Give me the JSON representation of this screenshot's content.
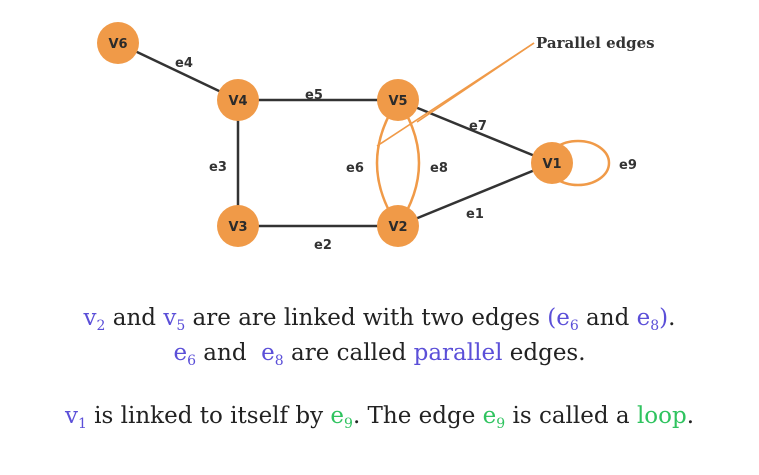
{
  "colors": {
    "node_fill": "#f09a48",
    "edge_dark": "#333333",
    "edge_highlight": "#f09a48",
    "accent_purple": "#5b4fd8",
    "accent_green": "#2fc35f",
    "text_dark": "#222222"
  },
  "graph": {
    "nodes": [
      {
        "id": "V6",
        "label": "V6"
      },
      {
        "id": "V4",
        "label": "V4"
      },
      {
        "id": "V5",
        "label": "V5"
      },
      {
        "id": "V3",
        "label": "V3"
      },
      {
        "id": "V2",
        "label": "V2"
      },
      {
        "id": "V1",
        "label": "V1"
      }
    ],
    "edges": [
      {
        "id": "e1",
        "label": "e1",
        "from": "V2",
        "to": "V1"
      },
      {
        "id": "e2",
        "label": "e2",
        "from": "V3",
        "to": "V2"
      },
      {
        "id": "e3",
        "label": "e3",
        "from": "V4",
        "to": "V3"
      },
      {
        "id": "e4",
        "label": "e4",
        "from": "V6",
        "to": "V4"
      },
      {
        "id": "e5",
        "label": "e5",
        "from": "V4",
        "to": "V5"
      },
      {
        "id": "e6",
        "label": "e6",
        "from": "V5",
        "to": "V2"
      },
      {
        "id": "e7",
        "label": "e7",
        "from": "V5",
        "to": "V1"
      },
      {
        "id": "e8",
        "label": "e8",
        "from": "V5",
        "to": "V2"
      },
      {
        "id": "e9",
        "label": "e9",
        "from": "V1",
        "to": "V1"
      }
    ],
    "callout": "Parallel edges"
  },
  "text": {
    "line1": [
      {
        "t": "v",
        "c": "purple"
      },
      {
        "t": "2",
        "c": "purple",
        "sub": true
      },
      {
        "t": " and ",
        "c": "dark"
      },
      {
        "t": "v",
        "c": "purple"
      },
      {
        "t": "5",
        "c": "purple",
        "sub": true
      },
      {
        "t": " are are linked with two edges ",
        "c": "dark"
      },
      {
        "t": "(e",
        "c": "purple"
      },
      {
        "t": "6",
        "c": "purple",
        "sub": true
      },
      {
        "t": " and ",
        "c": "dark"
      },
      {
        "t": "e",
        "c": "purple"
      },
      {
        "t": "8",
        "c": "purple",
        "sub": true
      },
      {
        "t": ")",
        "c": "purple"
      },
      {
        "t": ".",
        "c": "dark"
      }
    ],
    "line2": [
      {
        "t": "e",
        "c": "purple"
      },
      {
        "t": "6",
        "c": "purple",
        "sub": true
      },
      {
        "t": " and  ",
        "c": "dark"
      },
      {
        "t": "e",
        "c": "purple"
      },
      {
        "t": "8",
        "c": "purple",
        "sub": true
      },
      {
        "t": " are called ",
        "c": "dark"
      },
      {
        "t": "parallel",
        "c": "purple"
      },
      {
        "t": " edges.",
        "c": "dark"
      }
    ],
    "line3": [
      {
        "t": "v",
        "c": "purple"
      },
      {
        "t": "1",
        "c": "purple",
        "sub": true
      },
      {
        "t": " is linked to itself by ",
        "c": "dark"
      },
      {
        "t": "e",
        "c": "green"
      },
      {
        "t": "9",
        "c": "green",
        "sub": true
      },
      {
        "t": ". The edge ",
        "c": "dark"
      },
      {
        "t": "e",
        "c": "green"
      },
      {
        "t": "9",
        "c": "green",
        "sub": true
      },
      {
        "t": " is called a ",
        "c": "dark"
      },
      {
        "t": "loop",
        "c": "green"
      },
      {
        "t": ".",
        "c": "dark"
      }
    ]
  }
}
